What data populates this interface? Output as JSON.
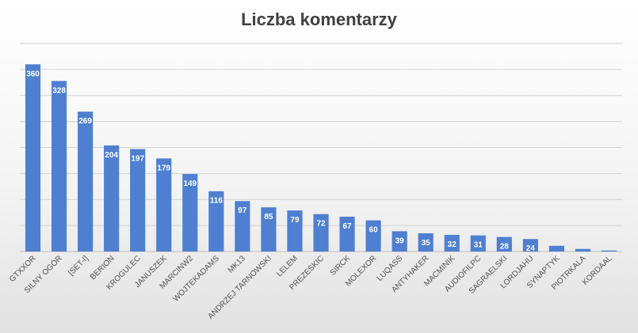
{
  "chart_data": {
    "type": "bar",
    "title": "Liczba komentarzy",
    "categories": [
      "GTXXOR",
      "SILNY OGÓR",
      "[SET-I]",
      "BERION",
      "KROGULEC",
      "JANUSZEK",
      "MARCINW2",
      "WOJTEKADAMS",
      "MK13",
      "ANDRZEJ TARNOWSKI",
      "LELEM",
      "PREZESKIC",
      "SIRCK",
      "MOLEXOR",
      "LUQASS",
      "ANTYHAKER",
      "MACMINIK",
      "AUDIOFILPC",
      "SAGRAELSKI",
      "LORDJAHU",
      "SYNAPTYK",
      "PIOTRKALA",
      "KORDAAL"
    ],
    "values": [
      360,
      328,
      269,
      204,
      197,
      179,
      149,
      116,
      97,
      85,
      79,
      72,
      67,
      60,
      39,
      35,
      32,
      31,
      28,
      24,
      11,
      5,
      2
    ],
    "xlabel": "",
    "ylabel": "",
    "ylim": [
      0,
      400
    ],
    "grid": true,
    "bar_color": "#4f7fd0",
    "label_color": "#ffffff"
  }
}
